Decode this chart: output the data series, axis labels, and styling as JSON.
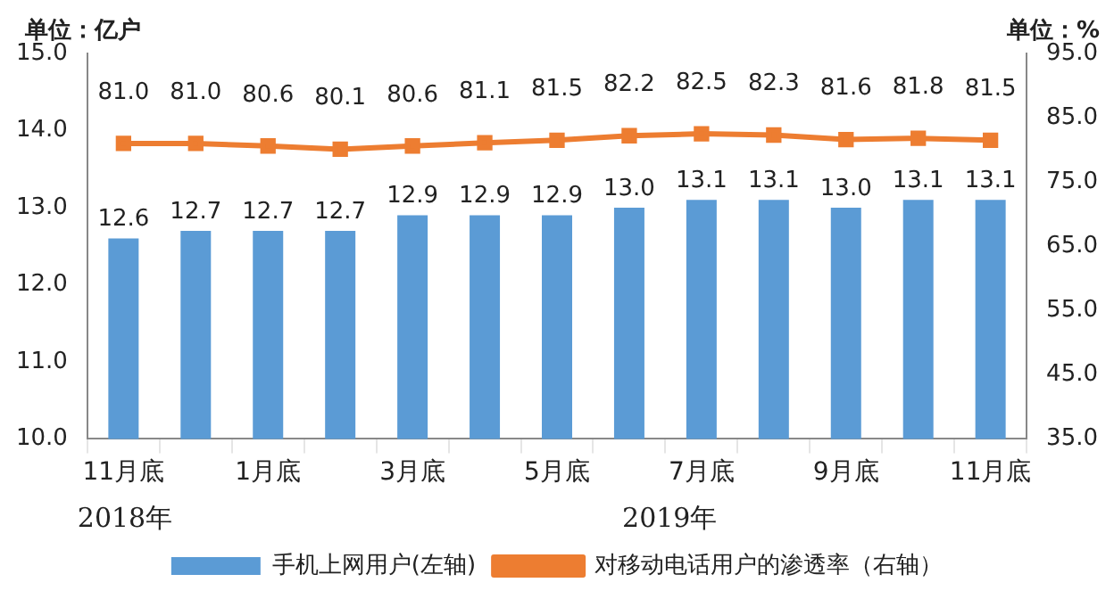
{
  "chart_data": {
    "type": "bar",
    "ylabel": "单位：亿户",
    "y2label": "单位：%",
    "categories": [
      "11月底",
      null,
      "1月底",
      null,
      "3月底",
      null,
      "5月底",
      null,
      "7月底",
      null,
      "9月底",
      null,
      "11月底"
    ],
    "series": [
      {
        "name": "手机上网用户(左轴)",
        "color": "#5b9bd5",
        "values": [
          12.6,
          12.7,
          12.7,
          12.7,
          12.9,
          12.9,
          12.9,
          13.0,
          13.1,
          13.1,
          13.0,
          13.1,
          13.1
        ],
        "value_labels": [
          "12.6",
          "12.7",
          "12.7",
          "12.7",
          "12.9",
          "12.9",
          "12.9",
          "13.0",
          "13.1",
          "13.1",
          "13.0",
          "13.1",
          "13.1"
        ]
      },
      {
        "name": "对移动电话用户的渗透率（右轴）",
        "type": "line",
        "axis": "y2",
        "color": "#ed7d31",
        "marker": "square",
        "values": [
          81.0,
          81.0,
          80.6,
          80.1,
          80.6,
          81.1,
          81.5,
          82.2,
          82.5,
          82.3,
          81.6,
          81.8,
          81.5
        ],
        "value_labels": [
          "81.0",
          "81.0",
          "80.6",
          "80.1",
          "80.6",
          "81.1",
          "81.5",
          "82.2",
          "82.5",
          "82.3",
          "81.6",
          "81.8",
          "81.5"
        ]
      }
    ],
    "ylim": [
      10,
      15
    ],
    "yticks": [
      {
        "value": 10,
        "label": "10.0"
      },
      {
        "value": 11,
        "label": "11.0"
      },
      {
        "value": 12,
        "label": "12.0"
      },
      {
        "value": 13,
        "label": "13.0"
      },
      {
        "value": 14,
        "label": "14.0"
      },
      {
        "value": 15,
        "label": "15.0"
      }
    ],
    "y2lim": [
      35,
      95
    ],
    "y2ticks": [
      {
        "value": 35,
        "label": "35.0"
      },
      {
        "value": 45,
        "label": "45.0"
      },
      {
        "value": 55,
        "label": "55.0"
      },
      {
        "value": 65,
        "label": "65.0"
      },
      {
        "value": 75,
        "label": "75.0"
      },
      {
        "value": 85,
        "label": "85.0"
      },
      {
        "value": 95,
        "label": "95.0"
      }
    ],
    "annotations": [
      "2018年",
      "2019年"
    ],
    "grid": false,
    "legend": "bottom"
  }
}
